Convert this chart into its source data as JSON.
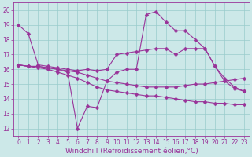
{
  "xlabel": "Windchill (Refroidissement éolien,°C)",
  "background_color": "#cce8e8",
  "line_color": "#993399",
  "xlim": [
    -0.5,
    23.5
  ],
  "ylim": [
    11.5,
    20.5
  ],
  "xticks": [
    0,
    1,
    2,
    3,
    4,
    5,
    6,
    7,
    8,
    9,
    10,
    11,
    12,
    13,
    14,
    15,
    16,
    17,
    18,
    19,
    20,
    21,
    22,
    23
  ],
  "yticks": [
    12,
    13,
    14,
    15,
    16,
    17,
    18,
    19,
    20
  ],
  "series": [
    [
      19.0,
      18.4,
      16.3,
      16.2,
      16.1,
      16.0,
      15.9,
      16.0,
      15.9,
      16.0,
      17.0,
      17.1,
      17.2,
      17.3,
      17.4,
      17.4,
      17.0,
      17.4,
      17.4,
      17.4,
      16.2,
      15.2,
      14.7,
      14.5
    ],
    [
      16.3,
      16.2,
      16.2,
      16.1,
      16.0,
      15.8,
      12.0,
      13.5,
      13.4,
      15.2,
      15.8,
      16.0,
      16.0,
      19.7,
      19.9,
      19.2,
      18.6,
      18.6,
      18.0,
      17.4,
      16.2,
      15.4,
      14.8,
      14.5
    ],
    [
      16.3,
      16.2,
      16.2,
      16.1,
      16.0,
      15.9,
      15.8,
      15.6,
      15.4,
      15.2,
      15.1,
      15.0,
      14.9,
      14.8,
      14.8,
      14.8,
      14.8,
      14.9,
      15.0,
      15.0,
      15.1,
      15.2,
      15.3,
      15.4
    ],
    [
      16.3,
      16.2,
      16.1,
      16.0,
      15.8,
      15.6,
      15.4,
      15.1,
      14.8,
      14.6,
      14.5,
      14.4,
      14.3,
      14.2,
      14.2,
      14.1,
      14.0,
      13.9,
      13.8,
      13.8,
      13.7,
      13.7,
      13.6,
      13.6
    ]
  ],
  "grid_color": "#99cccc",
  "marker": "D",
  "marker_size": 2.5,
  "linewidth": 0.8,
  "font_color": "#993399",
  "tick_fontsize": 5.5,
  "xlabel_fontsize": 6.5
}
